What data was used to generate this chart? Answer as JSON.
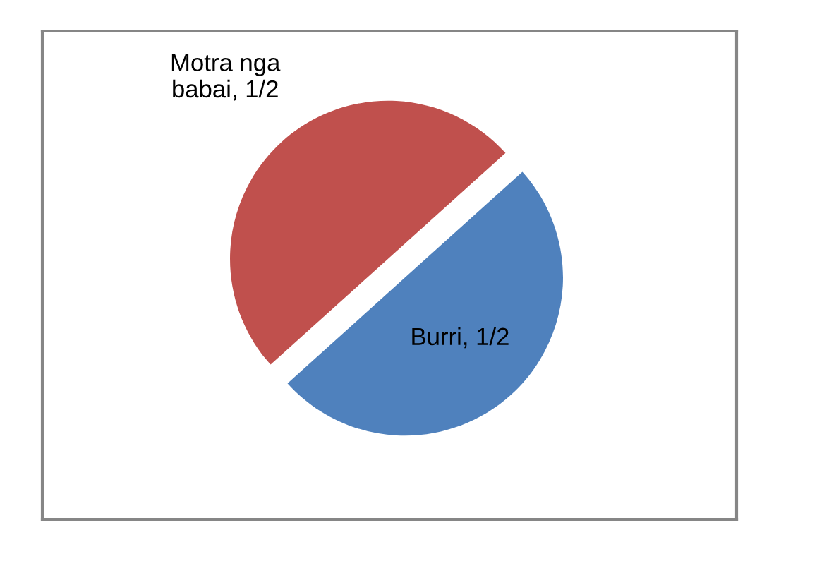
{
  "chart_data": {
    "type": "pie",
    "categories": [
      "Motra nga babai",
      "Burri"
    ],
    "values": [
      0.5,
      0.5
    ],
    "colors": [
      "#c0504d",
      "#4f81bd"
    ],
    "value_labels": [
      "1/2",
      "1/2"
    ]
  }
}
